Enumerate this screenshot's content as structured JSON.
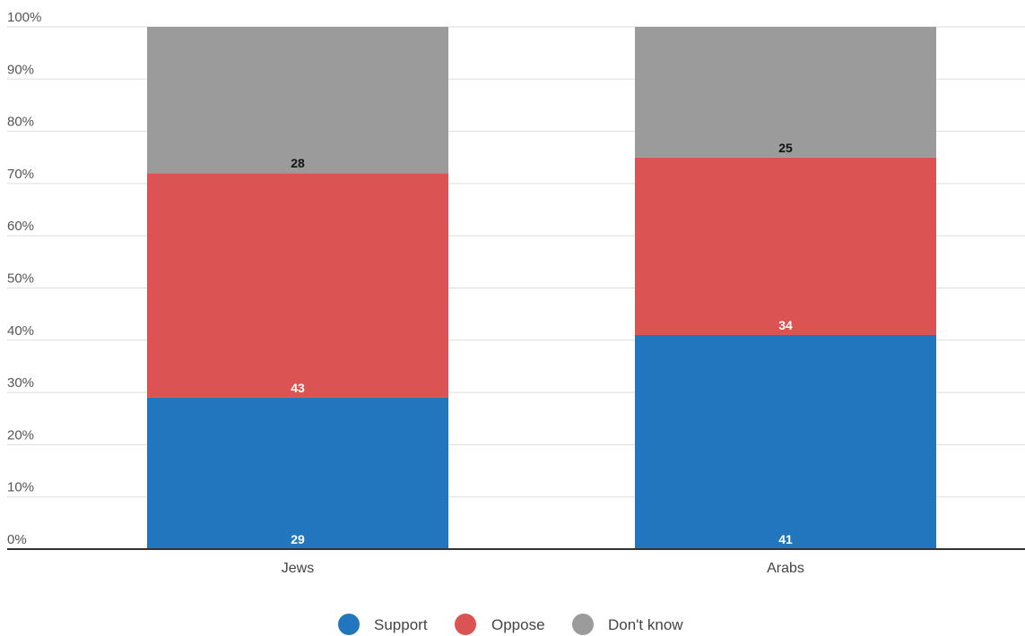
{
  "chart_data": {
    "type": "bar",
    "stacked": true,
    "categories": [
      "Jews",
      "Arabs"
    ],
    "series": [
      {
        "name": "Support",
        "color": "#2276be",
        "values": [
          29,
          41
        ]
      },
      {
        "name": "Oppose",
        "color": "#dc5353",
        "values": [
          43,
          34
        ]
      },
      {
        "name": "Don't know",
        "color": "#9b9b9b",
        "values": [
          28,
          25
        ]
      }
    ],
    "ylim": [
      0,
      100
    ],
    "yticks": [
      0,
      10,
      20,
      30,
      40,
      50,
      60,
      70,
      80,
      90,
      100
    ],
    "ytick_format": "%",
    "grid": true,
    "legend": "bottom-center",
    "label_colors": {
      "Support": "#ffffff",
      "Oppose": "#ffffff",
      "Don't know": "#111111"
    }
  }
}
